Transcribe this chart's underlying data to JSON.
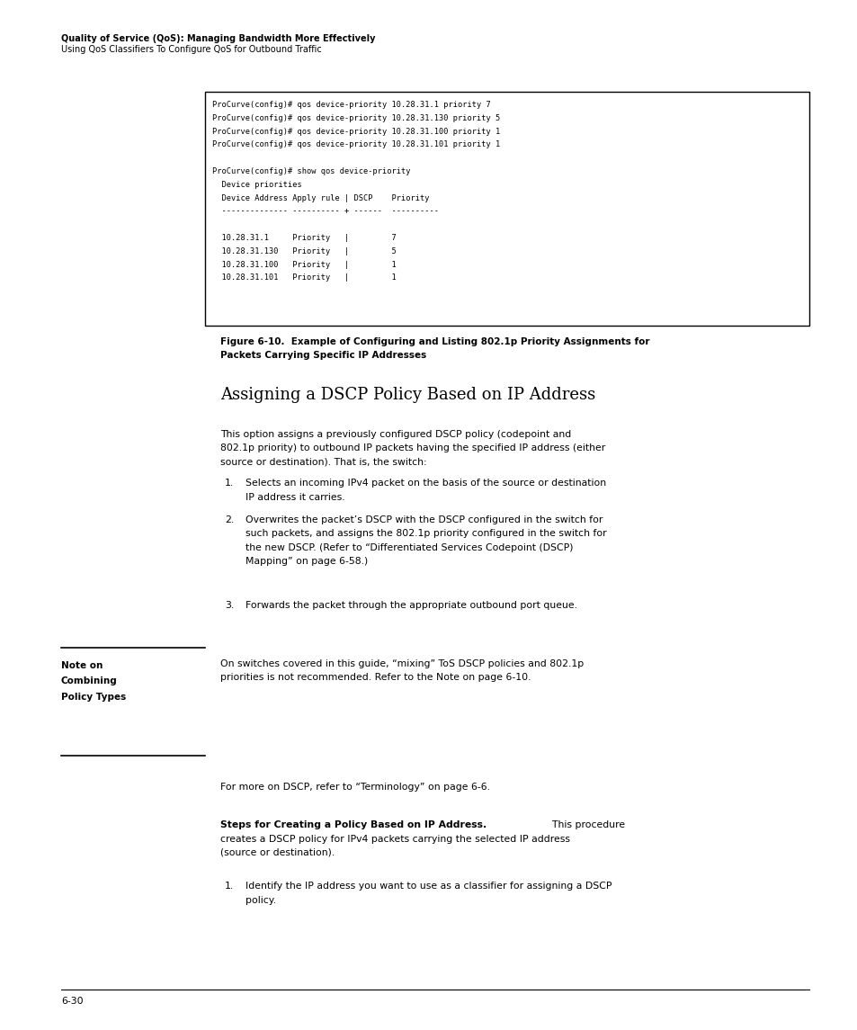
{
  "page_width": 9.54,
  "page_height": 11.45,
  "bg_color": "#ffffff",
  "header_bold": "Quality of Service (QoS): Managing Bandwidth More Effectively",
  "header_normal": "Using QoS Classifiers To Configure QoS for Outbound Traffic",
  "code_lines": [
    "ProCurve(config)# qos device-priority 10.28.31.1 priority 7",
    "ProCurve(config)# qos device-priority 10.28.31.130 priority 5",
    "ProCurve(config)# qos device-priority 10.28.31.100 priority 1",
    "ProCurve(config)# qos device-priority 10.28.31.101 priority 1",
    "",
    "ProCurve(config)# show qos device-priority",
    "  Device priorities",
    "  Device Address Apply rule | DSCP    Priority",
    "  -------------- ---------- + ------  ----------",
    "",
    "  10.28.31.1     Priority   |         7",
    "  10.28.31.130   Priority   |         5",
    "  10.28.31.100   Priority   |         1",
    "  10.28.31.101   Priority   |         1"
  ],
  "fig_cap1": "Figure 6-10.  Example of Configuring and Listing 802.1p Priority Assignments for",
  "fig_cap2": "Packets Carrying Specific IP Addresses",
  "section_heading": "Assigning a DSCP Policy Based on IP Address",
  "para1_lines": [
    "This option assigns a previously configured DSCP policy (codepoint and",
    "802.1p priority) to outbound IP packets having the specified IP address (either",
    "source or destination). That is, the switch:"
  ],
  "list1_num": "1.",
  "list1_text_lines": [
    "Selects an incoming IPv4 packet on the basis of the source or destination",
    "IP address it carries."
  ],
  "list2_num": "2.",
  "list2_text_lines": [
    "Overwrites the packet’s DSCP with the DSCP configured in the switch for",
    "such packets, and assigns the 802.1p priority configured in the switch for",
    "the new DSCP. (Refer to “Differentiated Services Codepoint (DSCP)",
    "Mapping” on page 6-58.)"
  ],
  "list3_num": "3.",
  "list3_text": "Forwards the packet through the appropriate outbound port queue.",
  "note_label": [
    "Note on",
    "Combining",
    "Policy Types"
  ],
  "note_text_lines": [
    "On switches covered in this guide, “mixing” ToS DSCP policies and 802.1p",
    "priorities is not recommended. Refer to the Note on page 6-10."
  ],
  "dscp_para": "For more on DSCP, refer to “Terminology” on page 6-6.",
  "steps_bold": "Steps for Creating a Policy Based on IP Address.",
  "steps_cont": "  This procedure",
  "steps_lines2": [
    "creates a DSCP policy for IPv4 packets carrying the selected IP address",
    "(source or destination)."
  ],
  "step1_num": "1.",
  "step1_lines": [
    "Identify the IP address you want to use as a classifier for assigning a DSCP",
    "policy."
  ],
  "page_number": "6-30"
}
